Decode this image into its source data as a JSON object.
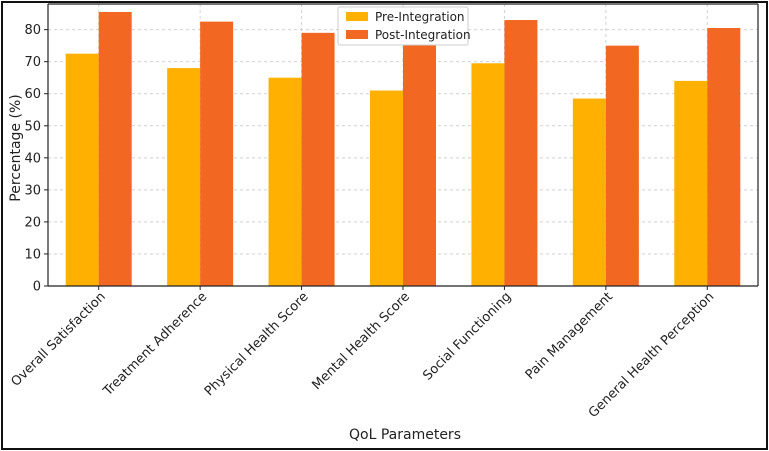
{
  "chart_data": {
    "type": "bar",
    "title": "",
    "xlabel": "QoL Parameters",
    "ylabel": "Percentage (%)",
    "ylim": [
      0,
      88
    ],
    "yticks": [
      0,
      10,
      20,
      30,
      40,
      50,
      60,
      70,
      80
    ],
    "grid": true,
    "legend_position": "top-center",
    "categories": [
      "Overall Satisfaction",
      "Treatment Adherence",
      "Physical Health Score",
      "Mental Health Score",
      "Social Functioning",
      "Pain Management",
      "General Health Perception"
    ],
    "series": [
      {
        "name": "Pre-Integration",
        "color": "#FFB000",
        "values": [
          72.5,
          68,
          65,
          61,
          69.5,
          58.5,
          64
        ]
      },
      {
        "name": "Post-Integration",
        "color": "#F26722",
        "values": [
          85.5,
          82.5,
          79,
          77,
          83,
          75,
          80.5
        ]
      }
    ]
  }
}
